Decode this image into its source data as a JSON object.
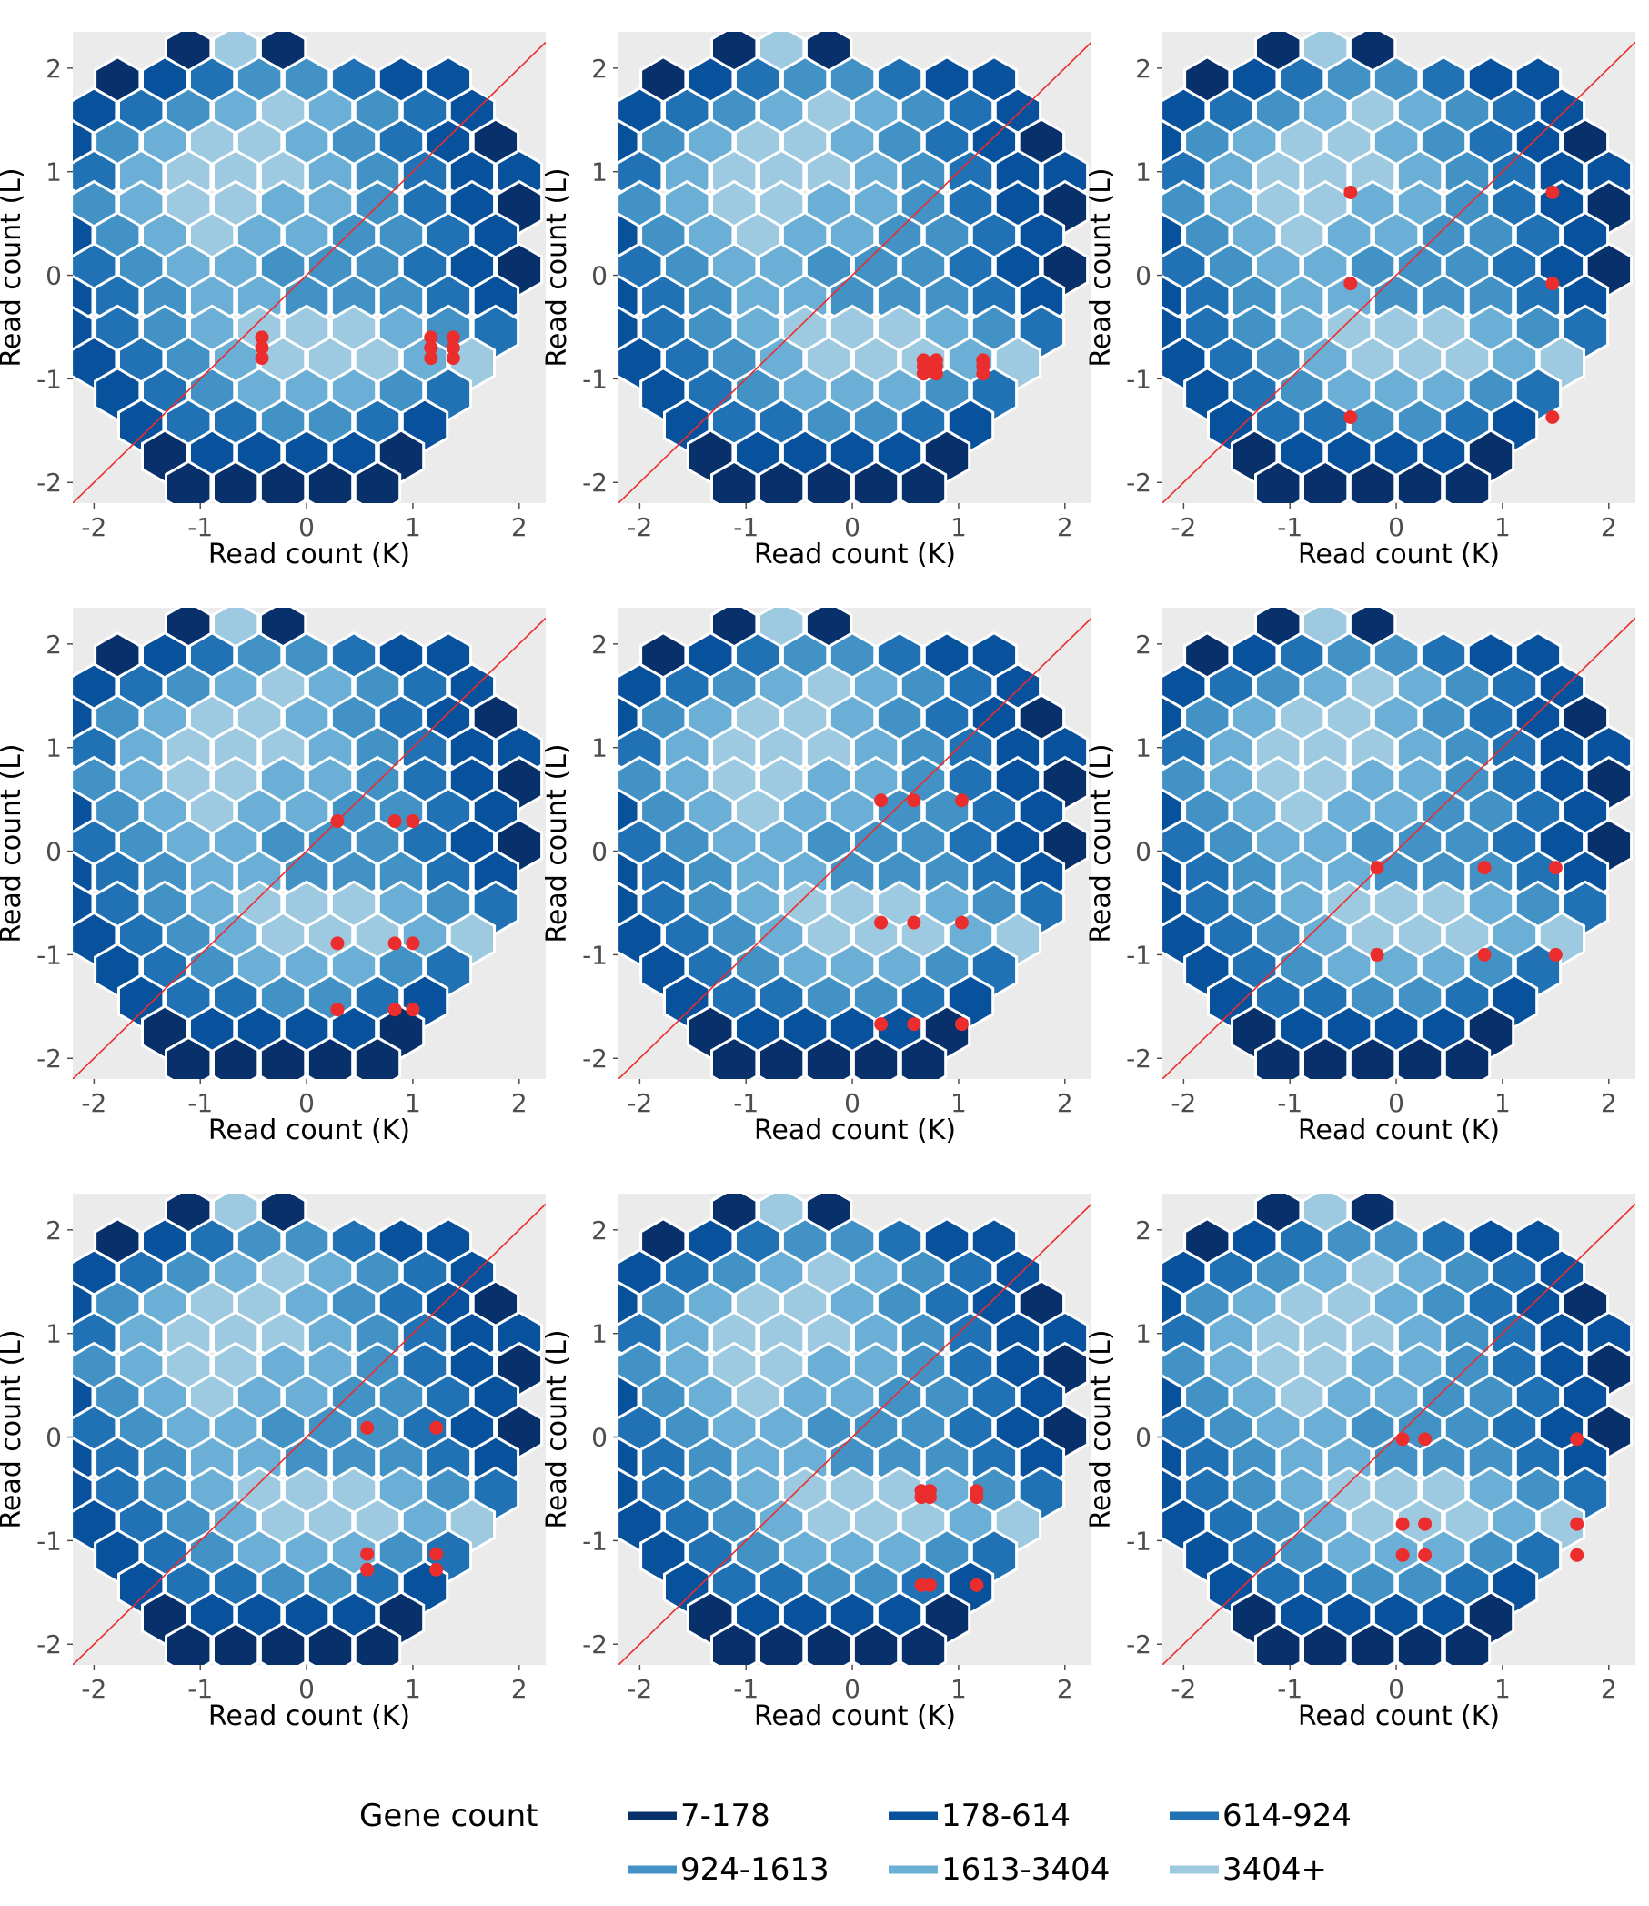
{
  "chart_data": [
    {
      "type": "scatter",
      "panel": 1,
      "xlabel": "Read count (K)",
      "ylabel": "Read count (L)",
      "xlim": [
        -2.2,
        2.25
      ],
      "ylim": [
        -2.2,
        2.35
      ],
      "xticks": [
        -2,
        -1,
        0,
        1,
        2
      ],
      "yticks": [
        -2,
        -1,
        0,
        1,
        2
      ],
      "reference_line": "y = x",
      "points": [
        [
          -0.42,
          -0.6
        ],
        [
          -0.42,
          -0.7
        ],
        [
          -0.42,
          -0.8
        ],
        [
          1.17,
          -0.6
        ],
        [
          1.17,
          -0.7
        ],
        [
          1.17,
          -0.8
        ],
        [
          1.38,
          -0.6
        ],
        [
          1.38,
          -0.7
        ],
        [
          1.38,
          -0.8
        ]
      ]
    },
    {
      "type": "scatter",
      "panel": 2,
      "xlabel": "Read count (K)",
      "ylabel": "Read count (L)",
      "xlim": [
        -2.2,
        2.25
      ],
      "ylim": [
        -2.2,
        2.35
      ],
      "xticks": [
        -2,
        -1,
        0,
        1,
        2
      ],
      "yticks": [
        -2,
        -1,
        0,
        1,
        2
      ],
      "reference_line": "y = x",
      "points": [
        [
          0.67,
          -0.82
        ],
        [
          0.67,
          -0.88
        ],
        [
          0.67,
          -0.95
        ],
        [
          0.79,
          -0.82
        ],
        [
          0.79,
          -0.88
        ],
        [
          0.79,
          -0.95
        ],
        [
          1.23,
          -0.82
        ],
        [
          1.23,
          -0.88
        ],
        [
          1.23,
          -0.95
        ]
      ]
    },
    {
      "type": "scatter",
      "panel": 3,
      "xlabel": "Read count (K)",
      "ylabel": "Read count (L)",
      "xlim": [
        -2.2,
        2.25
      ],
      "ylim": [
        -2.2,
        2.35
      ],
      "xticks": [
        -2,
        -1,
        0,
        1,
        2
      ],
      "yticks": [
        -2,
        -1,
        0,
        1,
        2
      ],
      "reference_line": "y = x",
      "points": [
        [
          -0.43,
          0.8
        ],
        [
          -0.43,
          -0.08
        ],
        [
          -0.43,
          -1.37
        ],
        [
          1.47,
          0.8
        ],
        [
          1.47,
          -0.08
        ],
        [
          1.47,
          -1.37
        ]
      ]
    },
    {
      "type": "scatter",
      "panel": 4,
      "xlabel": "Read count (K)",
      "ylabel": "Read count (L)",
      "xlim": [
        -2.2,
        2.25
      ],
      "ylim": [
        -2.2,
        2.35
      ],
      "xticks": [
        -2,
        -1,
        0,
        1,
        2
      ],
      "yticks": [
        -2,
        -1,
        0,
        1,
        2
      ],
      "reference_line": "y = x",
      "points": [
        [
          0.29,
          0.29
        ],
        [
          0.29,
          -0.89
        ],
        [
          0.29,
          -1.53
        ],
        [
          0.83,
          0.29
        ],
        [
          0.83,
          -0.89
        ],
        [
          0.83,
          -1.53
        ],
        [
          1.0,
          0.29
        ],
        [
          1.0,
          -0.89
        ],
        [
          1.0,
          -1.53
        ]
      ]
    },
    {
      "type": "scatter",
      "panel": 5,
      "xlabel": "Read count (K)",
      "ylabel": "Read count (L)",
      "xlim": [
        -2.2,
        2.25
      ],
      "ylim": [
        -2.2,
        2.35
      ],
      "xticks": [
        -2,
        -1,
        0,
        1,
        2
      ],
      "yticks": [
        -2,
        -1,
        0,
        1,
        2
      ],
      "reference_line": "y = x",
      "points": [
        [
          0.27,
          0.49
        ],
        [
          0.27,
          -0.69
        ],
        [
          0.27,
          -1.67
        ],
        [
          0.58,
          0.49
        ],
        [
          0.58,
          -0.69
        ],
        [
          0.58,
          -1.67
        ],
        [
          1.03,
          0.49
        ],
        [
          1.03,
          -0.69
        ],
        [
          1.03,
          -1.67
        ]
      ]
    },
    {
      "type": "scatter",
      "panel": 6,
      "xlabel": "Read count (K)",
      "ylabel": "Read count (L)",
      "xlim": [
        -2.2,
        2.25
      ],
      "ylim": [
        -2.2,
        2.35
      ],
      "xticks": [
        -2,
        -1,
        0,
        1,
        2
      ],
      "yticks": [
        -2,
        -1,
        0,
        1,
        2
      ],
      "reference_line": "y = x",
      "points": [
        [
          -0.18,
          -0.16
        ],
        [
          -0.18,
          -1.0
        ],
        [
          0.83,
          -0.16
        ],
        [
          0.83,
          -1.0
        ],
        [
          1.5,
          -0.16
        ],
        [
          1.5,
          -1.0
        ]
      ]
    },
    {
      "type": "scatter",
      "panel": 7,
      "xlabel": "Read count (K)",
      "ylabel": "Read count (L)",
      "xlim": [
        -2.2,
        2.25
      ],
      "ylim": [
        -2.2,
        2.35
      ],
      "xticks": [
        -2,
        -1,
        0,
        1,
        2
      ],
      "yticks": [
        -2,
        -1,
        0,
        1,
        2
      ],
      "reference_line": "y = x",
      "points": [
        [
          0.57,
          0.09
        ],
        [
          0.57,
          -1.13
        ],
        [
          0.57,
          -1.28
        ],
        [
          1.22,
          0.09
        ],
        [
          1.22,
          -1.13
        ],
        [
          1.22,
          -1.28
        ]
      ]
    },
    {
      "type": "scatter",
      "panel": 8,
      "xlabel": "Read count (K)",
      "ylabel": "Read count (L)",
      "xlim": [
        -2.2,
        2.25
      ],
      "ylim": [
        -2.2,
        2.35
      ],
      "xticks": [
        -2,
        -1,
        0,
        1,
        2
      ],
      "yticks": [
        -2,
        -1,
        0,
        1,
        2
      ],
      "reference_line": "y = x",
      "points": [
        [
          0.65,
          -0.52
        ],
        [
          0.65,
          -0.58
        ],
        [
          0.65,
          -1.43
        ],
        [
          0.73,
          -0.52
        ],
        [
          0.73,
          -0.58
        ],
        [
          0.73,
          -1.43
        ],
        [
          1.17,
          -0.52
        ],
        [
          1.17,
          -0.58
        ],
        [
          1.17,
          -1.43
        ]
      ]
    },
    {
      "type": "scatter",
      "panel": 9,
      "xlabel": "Read count (K)",
      "ylabel": "Read count (L)",
      "xlim": [
        -2.2,
        2.25
      ],
      "ylim": [
        -2.2,
        2.35
      ],
      "xticks": [
        -2,
        -1,
        0,
        1,
        2
      ],
      "yticks": [
        -2,
        -1,
        0,
        1,
        2
      ],
      "reference_line": "y = x",
      "points": [
        [
          0.06,
          -0.02
        ],
        [
          0.06,
          -0.84
        ],
        [
          0.06,
          -1.14
        ],
        [
          0.27,
          -0.02
        ],
        [
          0.27,
          -0.84
        ],
        [
          0.27,
          -1.14
        ],
        [
          1.7,
          -0.02
        ],
        [
          1.7,
          -0.84
        ],
        [
          1.7,
          -1.14
        ]
      ]
    }
  ],
  "hexbin": {
    "levels": [
      {
        "label": "7-178",
        "color": "#08306b"
      },
      {
        "label": "178-614",
        "color": "#08519c"
      },
      {
        "label": "614-924",
        "color": "#2171b5"
      },
      {
        "label": "924-1613",
        "color": "#4292c6"
      },
      {
        "label": "1613-3404",
        "color": "#6baed6"
      },
      {
        "label": "3404+",
        "color": "#9ecae1"
      }
    ]
  },
  "legend": {
    "title": "Gene count"
  },
  "style": {
    "panel_background": "#ebebeb",
    "point_color": "#ec2d2d",
    "diagonal_color": "#ec2d2d",
    "hex_border": "#ffffff"
  }
}
